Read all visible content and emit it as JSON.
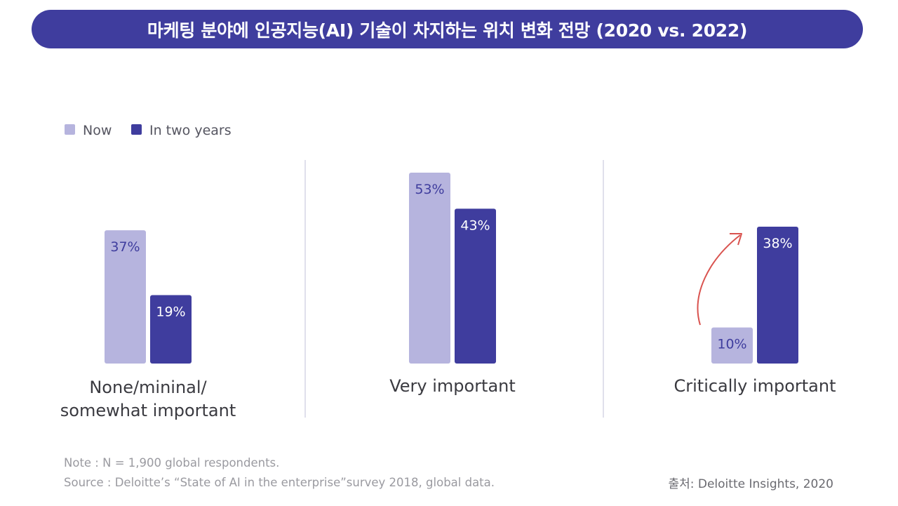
{
  "title": "마케팅 분야에 인공지능(AI) 기술이 차지하는 위치 변화 전망 (2020 vs. 2022)",
  "colors": {
    "now": "#b6b4de",
    "two_years": "#3f3d9e",
    "arrow": "#d9534f",
    "divider": "#d6d6e6"
  },
  "chart_data": {
    "type": "bar",
    "categories": [
      "None/mininal/\nsomewhat important",
      "Very important",
      "Critically important"
    ],
    "series": [
      {
        "name": "Now",
        "values": [
          37,
          53,
          10
        ],
        "labels": [
          "37%",
          "53%",
          "10%"
        ]
      },
      {
        "name": "In two years",
        "values": [
          19,
          43,
          38
        ],
        "labels": [
          "19%",
          "43%",
          "38%"
        ]
      }
    ],
    "unit": "%",
    "ylim": [
      0,
      53
    ],
    "legend_position": "top-left",
    "grid": false
  },
  "footer": {
    "note": "Note : N = 1,900 global respondents.",
    "source": "Source : Deloitte’s “State of AI in the enterprise”survey 2018, global data.",
    "credit": "출처: Deloitte Insights, 2020"
  }
}
